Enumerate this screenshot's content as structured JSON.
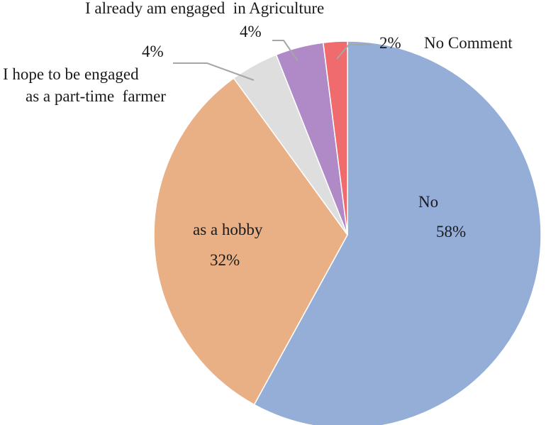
{
  "chart_data": {
    "type": "pie",
    "slices": [
      {
        "name_lines": [
          "No"
        ],
        "value": 58,
        "value_label": "58%",
        "color": "#94aed8"
      },
      {
        "name_lines": [
          "as a hobby"
        ],
        "value": 32,
        "value_label": "32%",
        "color": "#e9b086"
      },
      {
        "name_lines": [
          "I hope to be engaged",
          "as a part-time  farmer"
        ],
        "value": 4,
        "value_label": "4%",
        "color": "#dedede"
      },
      {
        "name_lines": [
          "I already am engaged  in Agriculture"
        ],
        "value": 4,
        "value_label": "4%",
        "color": "#b08ac6"
      },
      {
        "name_lines": [
          "No Comment"
        ],
        "value": 2,
        "value_label": "2%",
        "color": "#ef6b6e"
      }
    ],
    "start_angle": "12 o'clock",
    "direction": "clockwise",
    "leader_line_color": "#a6a6a6"
  }
}
